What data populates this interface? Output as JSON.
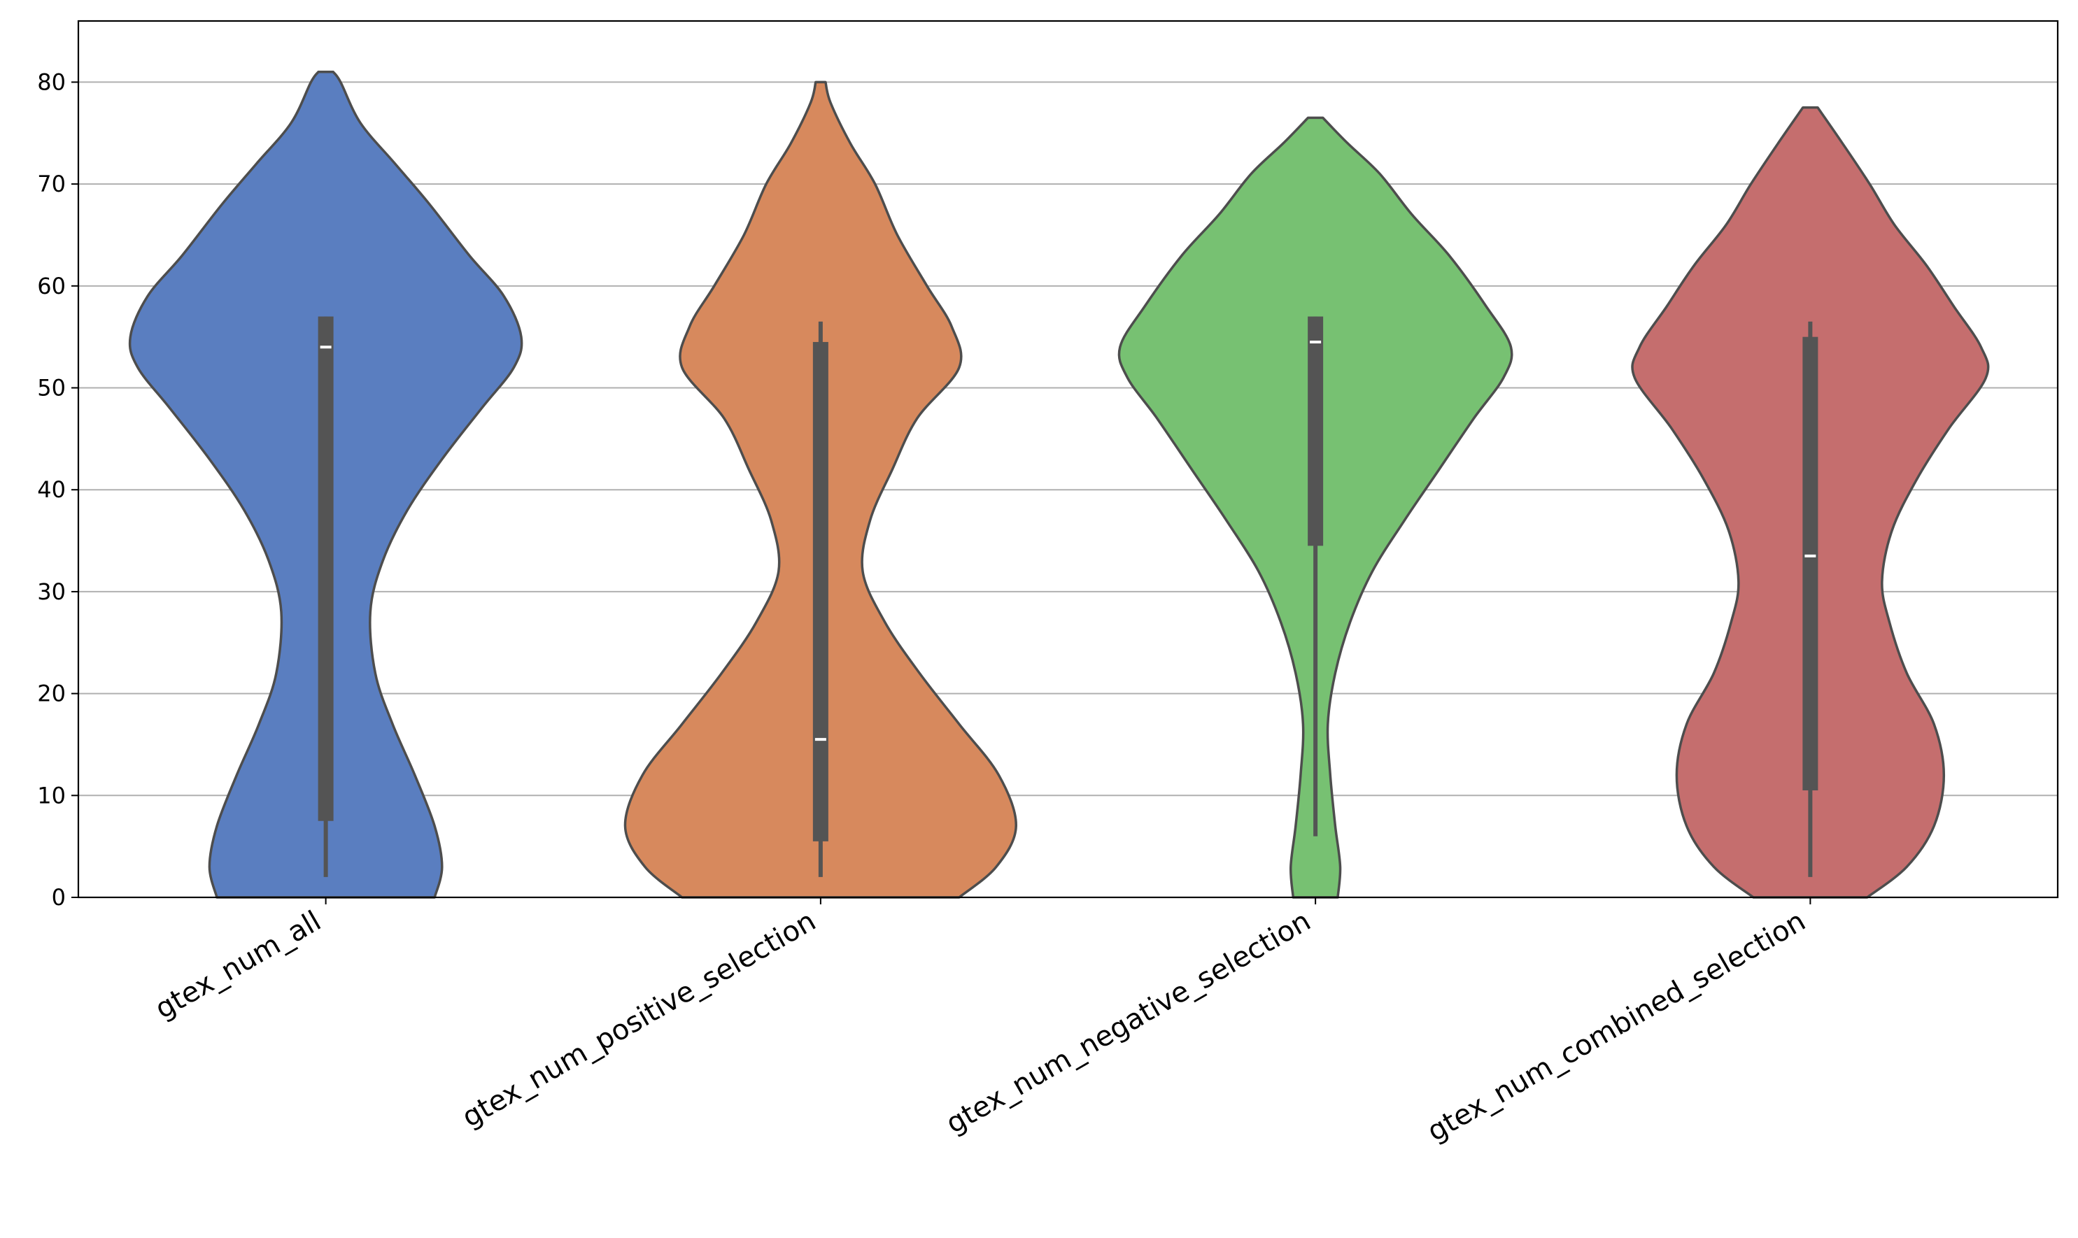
{
  "chart_data": {
    "type": "violin",
    "title": "",
    "xlabel": "",
    "ylabel": "",
    "ylim": [
      0,
      86
    ],
    "yticks": [
      0,
      10,
      20,
      30,
      40,
      50,
      60,
      70,
      80
    ],
    "grid": "y",
    "legend": "none",
    "outline_color": "#4d4d4d",
    "box_color": "#545454",
    "median_color": "#ffffff",
    "grid_color": "#b0b0b0",
    "categories": [
      "gtex_num_all",
      "gtex_num_positive_selection",
      "gtex_num_negative_selection",
      "gtex_num_combined_selection"
    ],
    "violins": [
      {
        "color": "#5a7ec0",
        "min": 0,
        "max": 81,
        "profile": [
          [
            0,
            4.4
          ],
          [
            3,
            4.7
          ],
          [
            7,
            4.4
          ],
          [
            12,
            3.6
          ],
          [
            17,
            2.7
          ],
          [
            22,
            2.0
          ],
          [
            28,
            1.8
          ],
          [
            33,
            2.3
          ],
          [
            38,
            3.3
          ],
          [
            43,
            4.7
          ],
          [
            48,
            6.3
          ],
          [
            52,
            7.6
          ],
          [
            55,
            7.9
          ],
          [
            59,
            7.2
          ],
          [
            63,
            5.8
          ],
          [
            68,
            4.2
          ],
          [
            72,
            2.8
          ],
          [
            76,
            1.4
          ],
          [
            80,
            0.6
          ],
          [
            81,
            0.3
          ]
        ],
        "whisker": [
          2,
          57
        ],
        "q1": 7.5,
        "q3": 57,
        "median": 54
      },
      {
        "color": "#d7895d",
        "min": 0,
        "max": 80,
        "profile": [
          [
            0,
            5.6
          ],
          [
            3,
            7.1
          ],
          [
            7,
            7.9
          ],
          [
            12,
            7.2
          ],
          [
            17,
            5.6
          ],
          [
            22,
            4.0
          ],
          [
            27,
            2.6
          ],
          [
            32,
            1.7
          ],
          [
            37,
            2.0
          ],
          [
            42,
            2.9
          ],
          [
            47,
            3.9
          ],
          [
            52,
            5.6
          ],
          [
            56,
            5.3
          ],
          [
            60,
            4.3
          ],
          [
            65,
            3.1
          ],
          [
            70,
            2.2
          ],
          [
            74,
            1.2
          ],
          [
            78,
            0.4
          ],
          [
            80,
            0.2
          ]
        ],
        "whisker": [
          2,
          56.5
        ],
        "q1": 5.5,
        "q3": 54.5,
        "median": 15.5
      },
      {
        "color": "#77c172",
        "min": 0,
        "max": 76.5,
        "profile": [
          [
            0,
            0.9
          ],
          [
            3,
            1.0
          ],
          [
            7,
            0.8
          ],
          [
            12,
            0.6
          ],
          [
            17,
            0.5
          ],
          [
            22,
            0.8
          ],
          [
            27,
            1.4
          ],
          [
            32,
            2.3
          ],
          [
            37,
            3.6
          ],
          [
            42,
            5.0
          ],
          [
            47,
            6.4
          ],
          [
            51,
            7.6
          ],
          [
            54,
            7.9
          ],
          [
            58,
            6.9
          ],
          [
            63,
            5.4
          ],
          [
            67,
            3.9
          ],
          [
            71,
            2.6
          ],
          [
            74,
            1.3
          ],
          [
            76.5,
            0.3
          ]
        ],
        "whisker": [
          6,
          57
        ],
        "q1": 34.5,
        "q3": 57,
        "median": 54.5
      },
      {
        "color": "#c56e6e",
        "min": 0,
        "max": 77.5,
        "profile": [
          [
            0,
            2.3
          ],
          [
            3,
            3.9
          ],
          [
            7,
            5.0
          ],
          [
            12,
            5.4
          ],
          [
            17,
            5.0
          ],
          [
            22,
            3.9
          ],
          [
            27,
            3.2
          ],
          [
            31,
            2.9
          ],
          [
            36,
            3.3
          ],
          [
            41,
            4.3
          ],
          [
            46,
            5.6
          ],
          [
            51,
            7.1
          ],
          [
            54,
            6.9
          ],
          [
            58,
            5.8
          ],
          [
            62,
            4.7
          ],
          [
            66,
            3.4
          ],
          [
            70,
            2.4
          ],
          [
            74,
            1.3
          ],
          [
            77.5,
            0.3
          ]
        ],
        "whisker": [
          2,
          56.5
        ],
        "q1": 10.5,
        "q3": 55,
        "median": 33.5
      }
    ]
  }
}
